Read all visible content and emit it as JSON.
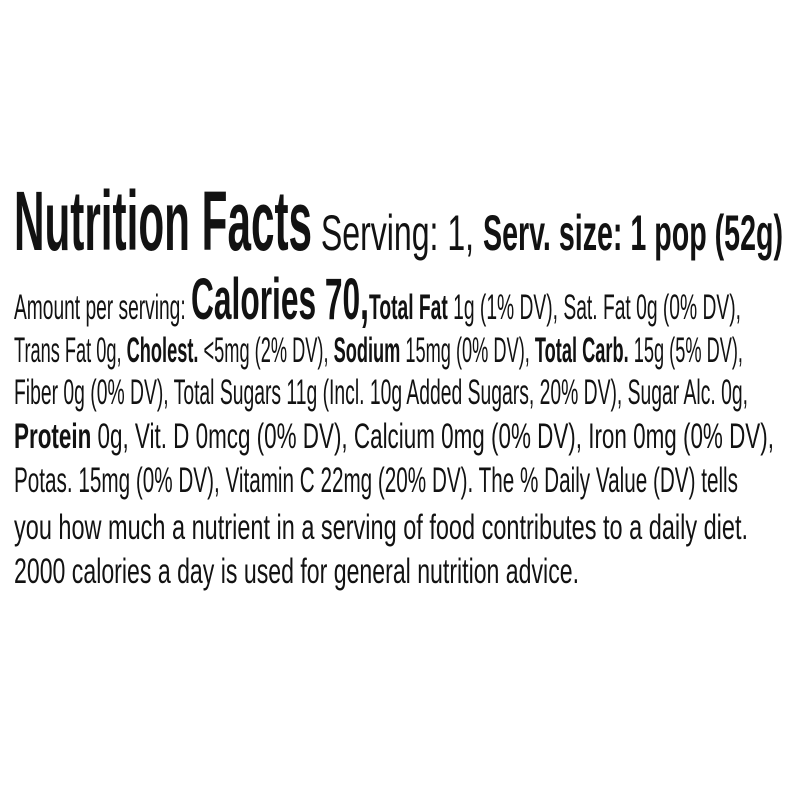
{
  "colors": {
    "text": "#121212",
    "background": "#ffffff"
  },
  "nutrition_label": {
    "title": "Nutrition Facts",
    "serving": "1",
    "serving_size": "1 pop (52g)",
    "calories": "70",
    "facts": [
      {
        "name": "Total Fat",
        "amount": "1g",
        "dv": "1% DV"
      },
      {
        "name": "Sat. Fat",
        "amount": "0g",
        "dv": "0% DV"
      },
      {
        "name": "Trans Fat",
        "amount": "0g",
        "dv": ""
      },
      {
        "name": "Cholest.",
        "amount": "<5mg",
        "dv": "2% DV"
      },
      {
        "name": "Sodium",
        "amount": "15mg",
        "dv": "0% DV"
      },
      {
        "name": "Total Carb.",
        "amount": "15g",
        "dv": "5% DV"
      },
      {
        "name": "Fiber",
        "amount": "0g",
        "dv": "0% DV"
      },
      {
        "name": "Total Sugars",
        "amount": "11g",
        "dv": ""
      },
      {
        "name": "Incl. Added Sugars",
        "amount": "10g",
        "dv": "20% DV"
      },
      {
        "name": "Sugar Alc.",
        "amount": "0g",
        "dv": ""
      },
      {
        "name": "Protein",
        "amount": "0g",
        "dv": ""
      },
      {
        "name": "Vit. D",
        "amount": "0mcg",
        "dv": "0% DV"
      },
      {
        "name": "Calcium",
        "amount": "0mg",
        "dv": "0% DV"
      },
      {
        "name": "Iron",
        "amount": "0mg",
        "dv": "0% DV"
      },
      {
        "name": "Potas.",
        "amount": "15mg",
        "dv": "0% DV"
      },
      {
        "name": "Vitamin C",
        "amount": "22mg",
        "dv": "20% DV"
      }
    ],
    "footnote": "The % Daily Value (DV) tells you how much a nutrient in a serving of food contributes to a daily diet. 2000 calories a day is used for general nutrition advice.",
    "lines": [
      {
        "runs": [
          {
            "t": "Nutrition Facts"
          },
          {
            "t": " Serving: 1, "
          },
          {
            "t": "Serv. size: 1 pop (52g)"
          }
        ]
      },
      {
        "runs": [
          {
            "t": "Amount per serving: "
          },
          {
            "t": "Calories 70,"
          },
          {
            "t": "Total Fat"
          },
          {
            "t": " 1g (1% DV), Sat. Fat 0g (0% DV),"
          }
        ]
      },
      {
        "runs": [
          {
            "t": "Trans Fat 0g, "
          },
          {
            "t": "Cholest."
          },
          {
            "t": " <5mg (2% DV), "
          },
          {
            "t": "Sodium"
          },
          {
            "t": " 15mg (0% DV), "
          },
          {
            "t": "Total Carb."
          },
          {
            "t": " 15g (5% DV),"
          }
        ]
      },
      {
        "runs": [
          {
            "t": "Fiber 0g (0% DV), Total Sugars 11g (Incl. 10g Added Sugars, 20% DV), Sugar Alc. 0g,"
          }
        ]
      },
      {
        "runs": [
          {
            "t": "Protein"
          },
          {
            "t": " 0g, Vit. D 0mcg (0% DV), Calcium 0mg (0% DV), Iron 0mg (0% DV),"
          }
        ]
      },
      {
        "runs": [
          {
            "t": "Potas. 15mg (0% DV), Vitamin C 22mg (20% DV). The % Daily Value (DV) tells"
          }
        ]
      },
      {
        "runs": [
          {
            "t": "you how much a nutrient in a serving of food contributes to a daily diet."
          }
        ]
      },
      {
        "runs": [
          {
            "t": "2000 calories a day is used for general nutrition advice."
          }
        ]
      }
    ]
  }
}
